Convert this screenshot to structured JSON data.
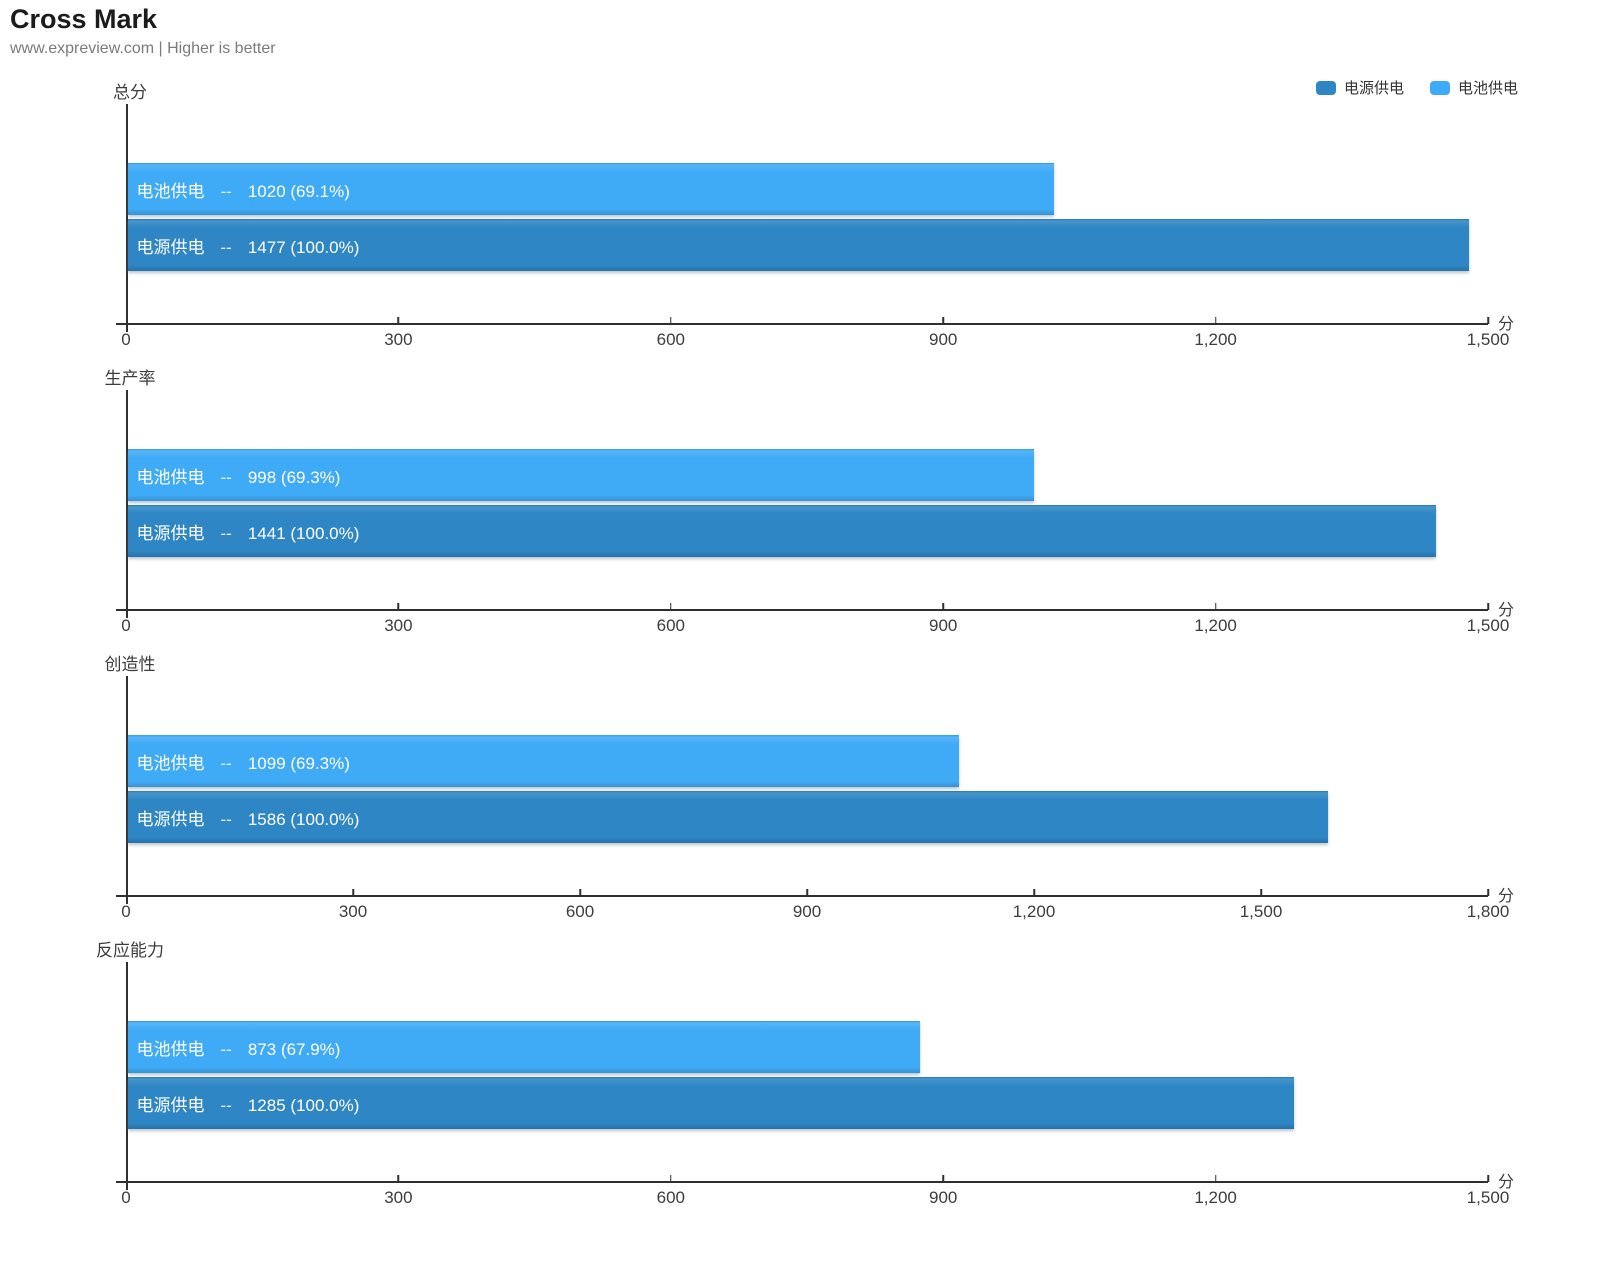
{
  "header": {
    "title": "Cross Mark",
    "subtitle": "www.expreview.com | Higher is better"
  },
  "legend": {
    "items": [
      {
        "label": "电源供电",
        "color_key": "ac"
      },
      {
        "label": "电池供电",
        "color_key": "battery"
      }
    ]
  },
  "labels": {
    "separator": "--",
    "unit": "分"
  },
  "colors": {
    "ac": "#2e86c5",
    "battery": "#3fabf7",
    "axis": "#2f2f2f",
    "text": "#3d3d3d"
  },
  "chart_data": [
    {
      "type": "bar",
      "orientation": "horizontal",
      "title": "总分",
      "xlim": [
        0,
        1500
      ],
      "xticks": [
        0,
        300,
        600,
        900,
        1200,
        1500
      ],
      "xtick_labels": [
        "0",
        "300",
        "600",
        "900",
        "1,200",
        "1,500"
      ],
      "unit": "分",
      "grid": false,
      "series": [
        {
          "name": "电池供电",
          "value": 1020,
          "percent": "69.1%",
          "color_key": "battery"
        },
        {
          "name": "电源供电",
          "value": 1477,
          "percent": "100.0%",
          "color_key": "ac"
        }
      ]
    },
    {
      "type": "bar",
      "orientation": "horizontal",
      "title": "生产率",
      "xlim": [
        0,
        1500
      ],
      "xticks": [
        0,
        300,
        600,
        900,
        1200,
        1500
      ],
      "xtick_labels": [
        "0",
        "300",
        "600",
        "900",
        "1,200",
        "1,500"
      ],
      "unit": "分",
      "grid": false,
      "series": [
        {
          "name": "电池供电",
          "value": 998,
          "percent": "69.3%",
          "color_key": "battery"
        },
        {
          "name": "电源供电",
          "value": 1441,
          "percent": "100.0%",
          "color_key": "ac"
        }
      ]
    },
    {
      "type": "bar",
      "orientation": "horizontal",
      "title": "创造性",
      "xlim": [
        0,
        1800
      ],
      "xticks": [
        0,
        300,
        600,
        900,
        1200,
        1500,
        1800
      ],
      "xtick_labels": [
        "0",
        "300",
        "600",
        "900",
        "1,200",
        "1,500",
        "1,800"
      ],
      "unit": "分",
      "grid": false,
      "series": [
        {
          "name": "电池供电",
          "value": 1099,
          "percent": "69.3%",
          "color_key": "battery"
        },
        {
          "name": "电源供电",
          "value": 1586,
          "percent": "100.0%",
          "color_key": "ac"
        }
      ]
    },
    {
      "type": "bar",
      "orientation": "horizontal",
      "title": "反应能力",
      "xlim": [
        0,
        1500
      ],
      "xticks": [
        0,
        300,
        600,
        900,
        1200,
        1500
      ],
      "xtick_labels": [
        "0",
        "300",
        "600",
        "900",
        "1,200",
        "1,500"
      ],
      "unit": "分",
      "grid": false,
      "series": [
        {
          "name": "电池供电",
          "value": 873,
          "percent": "67.9%",
          "color_key": "battery"
        },
        {
          "name": "电源供电",
          "value": 1285,
          "percent": "100.0%",
          "color_key": "ac"
        }
      ]
    }
  ]
}
